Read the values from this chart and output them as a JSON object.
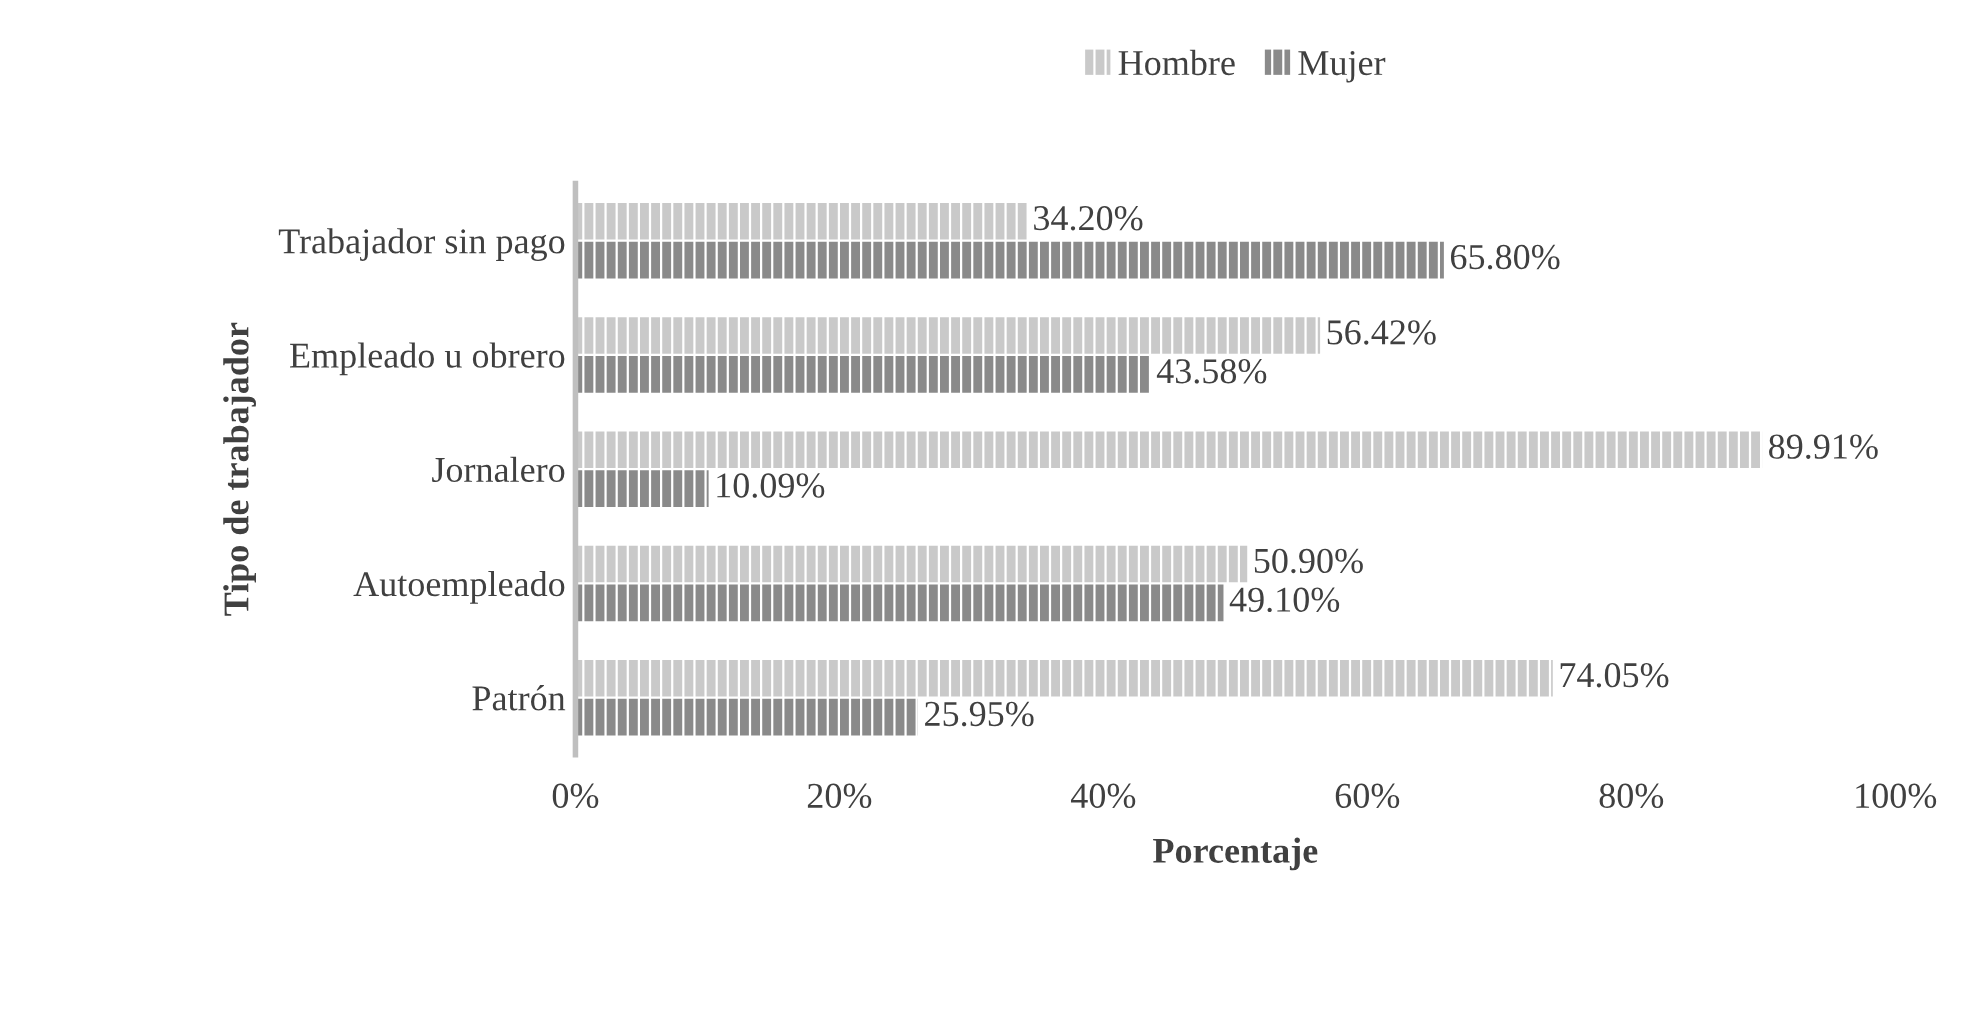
{
  "chart_data": {
    "type": "bar",
    "orientation": "horizontal",
    "categories": [
      "Trabajador sin pago",
      "Empleado u obrero",
      "Jornalero",
      "Autoempleado",
      "Patrón"
    ],
    "series": [
      {
        "name": "Hombre",
        "color": "#c9c9c9",
        "values": [
          34.2,
          56.42,
          89.91,
          50.9,
          74.05
        ],
        "value_labels": [
          "34.20%",
          "56.42%",
          "89.91%",
          "50.90%",
          "74.05%"
        ]
      },
      {
        "name": "Mujer",
        "color": "#8a8a8a",
        "values": [
          65.8,
          43.58,
          10.09,
          49.1,
          25.95
        ],
        "value_labels": [
          "65.80%",
          "43.58%",
          "10.09%",
          "49.10%",
          "25.95%"
        ]
      }
    ],
    "xlim": [
      0,
      100
    ],
    "xticks": [
      {
        "value": 0,
        "label": "0%"
      },
      {
        "value": 20,
        "label": "20%"
      },
      {
        "value": 40,
        "label": "40%"
      },
      {
        "value": 60,
        "label": "60%"
      },
      {
        "value": 80,
        "label": "80%"
      },
      {
        "value": 100,
        "label": "100%"
      }
    ],
    "xlabel": "Porcentaje",
    "ylabel": "Tipo de trabajador",
    "legend": "top",
    "grid": false
  }
}
